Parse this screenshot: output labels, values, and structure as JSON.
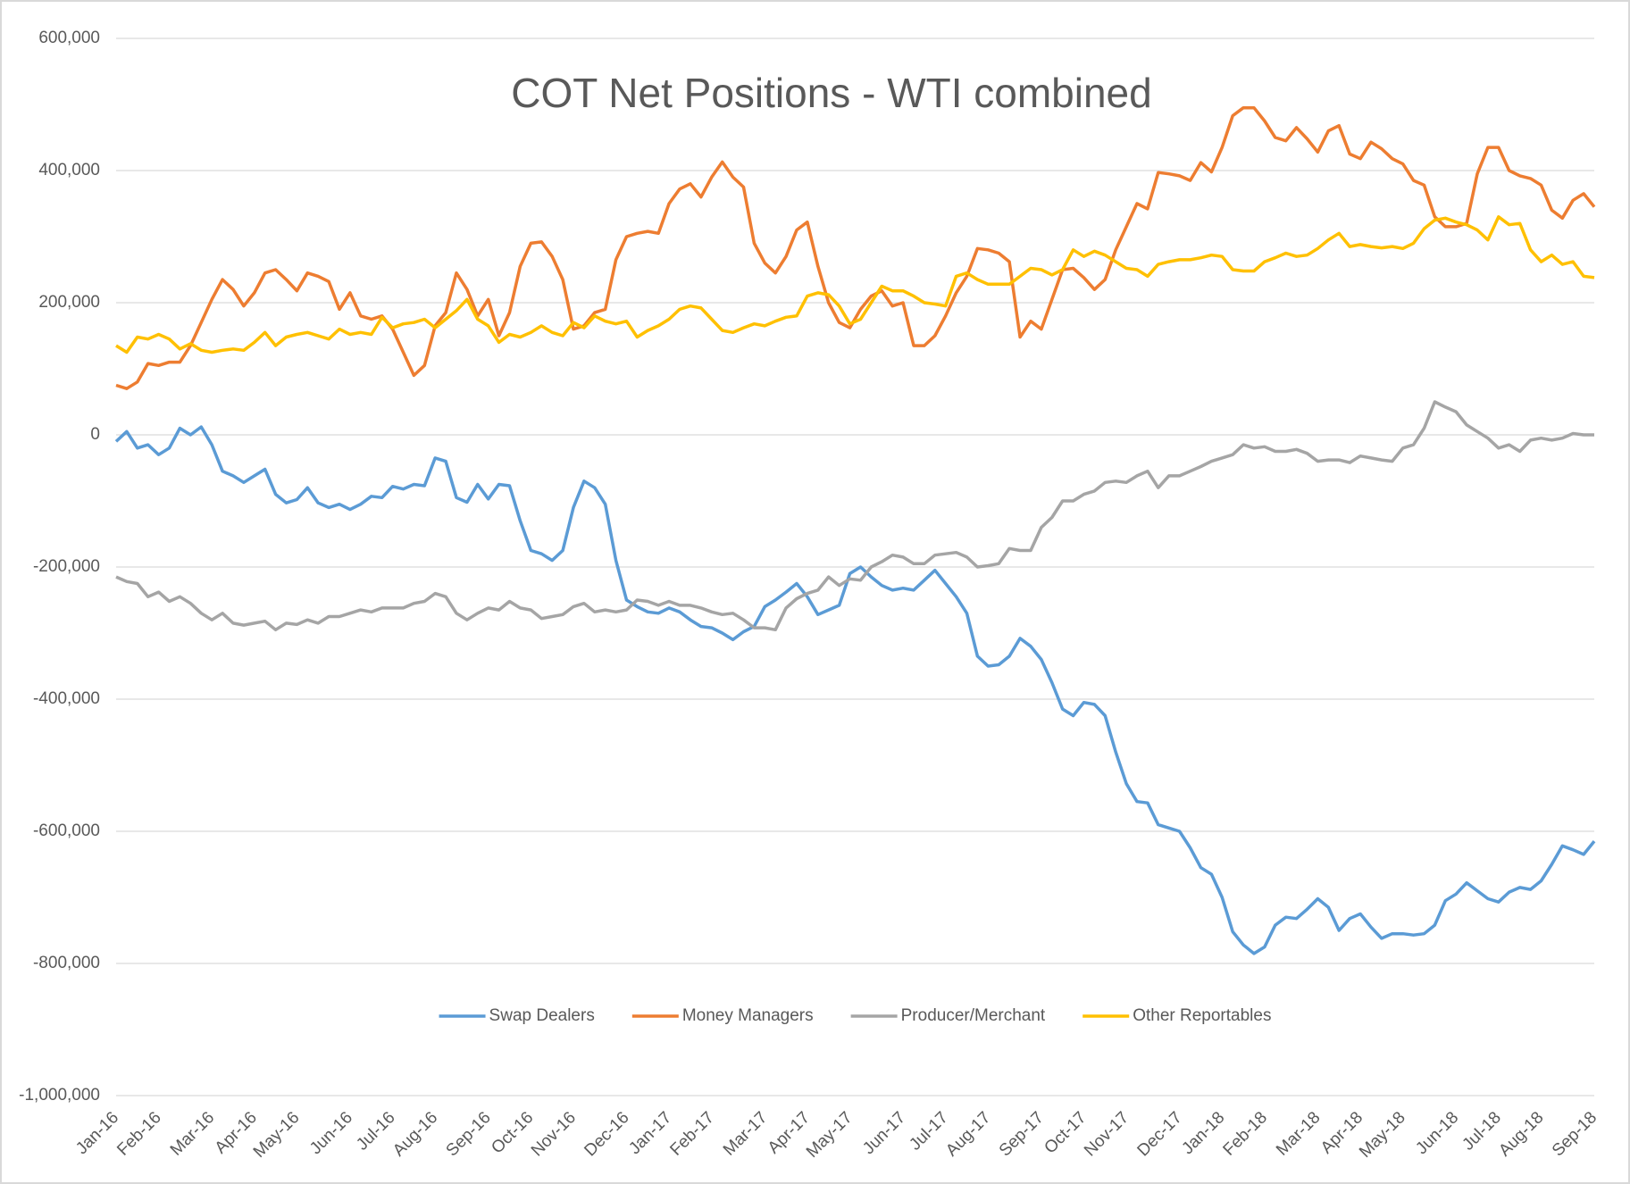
{
  "chart_data": {
    "type": "line",
    "title": "COT Net Positions - WTI combined",
    "categories": [
      "Jan-16",
      null,
      null,
      null,
      "Feb-16",
      null,
      null,
      null,
      null,
      "Mar-16",
      null,
      null,
      null,
      "Apr-16",
      null,
      null,
      null,
      "May-16",
      null,
      null,
      null,
      null,
      "Jun-16",
      null,
      null,
      null,
      "Jul-16",
      null,
      null,
      null,
      "Aug-16",
      null,
      null,
      null,
      null,
      "Sep-16",
      null,
      null,
      null,
      "Oct-16",
      null,
      null,
      null,
      "Nov-16",
      null,
      null,
      null,
      null,
      "Dec-16",
      null,
      null,
      null,
      "Jan-17",
      null,
      null,
      null,
      "Feb-17",
      null,
      null,
      null,
      null,
      "Mar-17",
      null,
      null,
      null,
      "Apr-17",
      null,
      null,
      null,
      "May-17",
      null,
      null,
      null,
      null,
      "Jun-17",
      null,
      null,
      null,
      "Jul-17",
      null,
      null,
      null,
      "Aug-17",
      null,
      null,
      null,
      null,
      "Sep-17",
      null,
      null,
      null,
      "Oct-17",
      null,
      null,
      null,
      "Nov-17",
      null,
      null,
      null,
      null,
      "Dec-17",
      null,
      null,
      null,
      "Jan-18",
      null,
      null,
      null,
      "Feb-18",
      null,
      null,
      null,
      null,
      "Mar-18",
      null,
      null,
      null,
      "Apr-18",
      null,
      null,
      null,
      "May-18",
      null,
      null,
      null,
      null,
      "Jun-18",
      null,
      null,
      null,
      "Jul-18",
      null,
      null,
      null,
      "Aug-18",
      null,
      null,
      null,
      null,
      "Sep-18"
    ],
    "series": [
      {
        "name": "Swap Dealers",
        "color": "#5b9bd5",
        "values": [
          -10000,
          5000,
          -20000,
          -15000,
          -30000,
          -20000,
          10000,
          0,
          12000,
          -15000,
          -55000,
          -62000,
          -72000,
          -62000,
          -52000,
          -90000,
          -103000,
          -98000,
          -80000,
          -103000,
          -110000,
          -105000,
          -113000,
          -105000,
          -93000,
          -95000,
          -78000,
          -82000,
          -75000,
          -77000,
          -35000,
          -40000,
          -95000,
          -102000,
          -75000,
          -97000,
          -75000,
          -77000,
          -130000,
          -175000,
          -180000,
          -190000,
          -175000,
          -110000,
          -70000,
          -80000,
          -105000,
          -190000,
          -250000,
          -260000,
          -268000,
          -270000,
          -262000,
          -268000,
          -280000,
          -290000,
          -292000,
          -300000,
          -310000,
          -298000,
          -290000,
          -260000,
          -250000,
          -238000,
          -225000,
          -245000,
          -272000,
          -265000,
          -258000,
          -210000,
          -200000,
          -215000,
          -228000,
          -235000,
          -232000,
          -235000,
          -220000,
          -205000,
          -225000,
          -245000,
          -270000,
          -335000,
          -350000,
          -348000,
          -335000,
          -308000,
          -320000,
          -340000,
          -375000,
          -415000,
          -425000,
          -405000,
          -408000,
          -425000,
          -480000,
          -528000,
          -555000,
          -557000,
          -590000,
          -595000,
          -600000,
          -625000,
          -655000,
          -665000,
          -700000,
          -752000,
          -772000,
          -785000,
          -775000,
          -742000,
          -730000,
          -732000,
          -718000,
          -702000,
          -715000,
          -750000,
          -732000,
          -725000,
          -745000,
          -762000,
          -755000,
          -755000,
          -757000,
          -755000,
          -742000,
          -705000,
          -695000,
          -678000,
          -690000,
          -702000,
          -707000,
          -692000,
          -685000,
          -688000,
          -675000,
          -650000,
          -622000,
          -628000,
          -635000,
          -615000
        ]
      },
      {
        "name": "Money Managers",
        "color": "#ed7d31",
        "values": [
          75000,
          70000,
          80000,
          108000,
          105000,
          110000,
          110000,
          135000,
          170000,
          205000,
          235000,
          220000,
          195000,
          215000,
          245000,
          250000,
          235000,
          218000,
          245000,
          240000,
          232000,
          190000,
          215000,
          180000,
          175000,
          180000,
          160000,
          125000,
          90000,
          105000,
          165000,
          185000,
          245000,
          220000,
          180000,
          205000,
          150000,
          185000,
          255000,
          290000,
          292000,
          270000,
          235000,
          160000,
          165000,
          185000,
          190000,
          265000,
          300000,
          305000,
          308000,
          305000,
          350000,
          372000,
          380000,
          360000,
          390000,
          413000,
          390000,
          375000,
          290000,
          260000,
          245000,
          270000,
          310000,
          322000,
          255000,
          200000,
          170000,
          162000,
          190000,
          210000,
          218000,
          195000,
          200000,
          135000,
          135000,
          150000,
          180000,
          215000,
          240000,
          282000,
          280000,
          275000,
          262000,
          148000,
          172000,
          160000,
          205000,
          250000,
          252000,
          238000,
          220000,
          235000,
          280000,
          315000,
          350000,
          342000,
          397000,
          395000,
          392000,
          385000,
          412000,
          398000,
          435000,
          483000,
          495000,
          495000,
          475000,
          450000,
          445000,
          465000,
          448000,
          428000,
          460000,
          468000,
          425000,
          418000,
          443000,
          433000,
          418000,
          410000,
          385000,
          378000,
          330000,
          315000,
          315000,
          320000,
          395000,
          435000,
          435000,
          400000,
          392000,
          388000,
          378000,
          340000,
          328000,
          355000,
          365000,
          345000
        ]
      },
      {
        "name": "Producer/Merchant",
        "color": "#a5a5a5",
        "values": [
          -215000,
          -222000,
          -225000,
          -245000,
          -238000,
          -252000,
          -245000,
          -255000,
          -270000,
          -280000,
          -270000,
          -285000,
          -288000,
          -285000,
          -282000,
          -295000,
          -285000,
          -287000,
          -280000,
          -285000,
          -275000,
          -275000,
          -270000,
          -265000,
          -268000,
          -262000,
          -262000,
          -262000,
          -255000,
          -252000,
          -240000,
          -245000,
          -270000,
          -280000,
          -270000,
          -262000,
          -265000,
          -252000,
          -262000,
          -265000,
          -278000,
          -275000,
          -272000,
          -260000,
          -255000,
          -268000,
          -265000,
          -268000,
          -265000,
          -250000,
          -252000,
          -258000,
          -252000,
          -258000,
          -258000,
          -262000,
          -268000,
          -272000,
          -270000,
          -280000,
          -292000,
          -292000,
          -295000,
          -262000,
          -248000,
          -240000,
          -235000,
          -215000,
          -228000,
          -218000,
          -220000,
          -200000,
          -192000,
          -182000,
          -185000,
          -195000,
          -195000,
          -182000,
          -180000,
          -178000,
          -185000,
          -200000,
          -198000,
          -195000,
          -172000,
          -175000,
          -175000,
          -140000,
          -125000,
          -100000,
          -100000,
          -90000,
          -85000,
          -72000,
          -70000,
          -72000,
          -62000,
          -55000,
          -80000,
          -62000,
          -62000,
          -55000,
          -48000,
          -40000,
          -35000,
          -30000,
          -15000,
          -20000,
          -18000,
          -25000,
          -25000,
          -22000,
          -28000,
          -40000,
          -38000,
          -38000,
          -42000,
          -32000,
          -35000,
          -38000,
          -40000,
          -20000,
          -15000,
          10000,
          50000,
          42000,
          35000,
          15000,
          5000,
          -5000,
          -20000,
          -15000,
          -25000,
          -8000,
          -5000,
          -8000,
          -5000,
          2000,
          0,
          0
        ]
      },
      {
        "name": "Other Reportables",
        "color": "#ffc000",
        "values": [
          135000,
          125000,
          148000,
          145000,
          152000,
          145000,
          130000,
          138000,
          128000,
          125000,
          128000,
          130000,
          128000,
          140000,
          155000,
          135000,
          148000,
          152000,
          155000,
          150000,
          145000,
          160000,
          152000,
          155000,
          152000,
          178000,
          162000,
          168000,
          170000,
          175000,
          162000,
          175000,
          188000,
          205000,
          175000,
          165000,
          140000,
          152000,
          148000,
          155000,
          165000,
          155000,
          150000,
          170000,
          162000,
          180000,
          172000,
          168000,
          172000,
          148000,
          158000,
          165000,
          175000,
          190000,
          195000,
          192000,
          175000,
          158000,
          155000,
          162000,
          168000,
          165000,
          172000,
          178000,
          180000,
          210000,
          215000,
          212000,
          195000,
          168000,
          175000,
          200000,
          225000,
          218000,
          218000,
          210000,
          200000,
          198000,
          195000,
          240000,
          245000,
          235000,
          228000,
          228000,
          228000,
          240000,
          252000,
          250000,
          242000,
          250000,
          280000,
          270000,
          278000,
          272000,
          262000,
          252000,
          250000,
          240000,
          258000,
          262000,
          265000,
          265000,
          268000,
          272000,
          270000,
          250000,
          248000,
          248000,
          262000,
          268000,
          275000,
          270000,
          272000,
          282000,
          295000,
          305000,
          285000,
          288000,
          285000,
          283000,
          285000,
          282000,
          290000,
          312000,
          325000,
          328000,
          322000,
          318000,
          310000,
          295000,
          330000,
          318000,
          320000,
          280000,
          262000,
          272000,
          258000,
          262000,
          240000,
          238000
        ]
      }
    ],
    "ylim": [
      -1000000,
      600000
    ],
    "yticks": [
      {
        "value": -1000000,
        "label": "-1,000,000"
      },
      {
        "value": -800000,
        "label": "-800,000"
      },
      {
        "value": -600000,
        "label": "-600,000"
      },
      {
        "value": -400000,
        "label": "-400,000"
      },
      {
        "value": -200000,
        "label": "-200,000"
      },
      0,
      {
        "value": 200000,
        "label": "200,000"
      },
      {
        "value": 400000,
        "label": "400,000"
      },
      {
        "value": 600000,
        "label": "600,000"
      }
    ],
    "grid": true,
    "legend": "bottom"
  }
}
